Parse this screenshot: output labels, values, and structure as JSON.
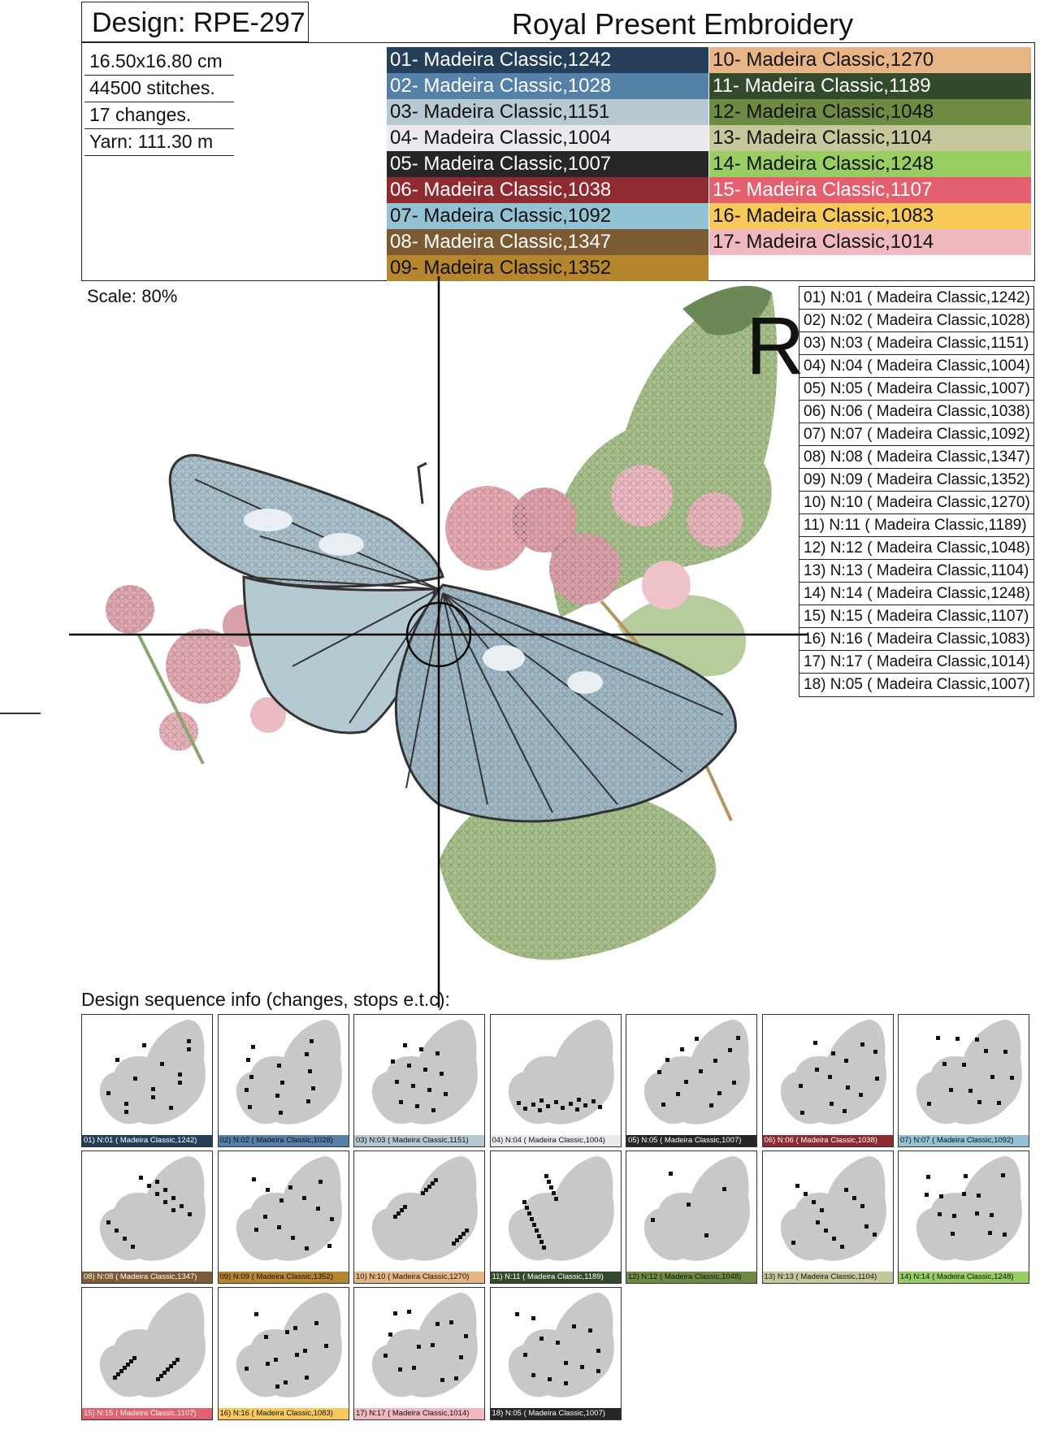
{
  "header": {
    "design_title": "Design: RPE-297",
    "brand": "Royal Present Embroidery"
  },
  "info": [
    "16.50x16.80 cm",
    "44500 stitches.",
    "17 changes.",
    "Yarn: 111.30 m"
  ],
  "scale": "Scale: 80%",
  "registration_mark": "R",
  "colors": [
    {
      "label": "01- Madeira Classic,1242",
      "hex": "#253f5b",
      "text": "#ffffff"
    },
    {
      "label": "02- Madeira Classic,1028",
      "hex": "#5580a8",
      "text": "#ffffff"
    },
    {
      "label": "03- Madeira Classic,1151",
      "hex": "#b8c8d2",
      "text": "#111111"
    },
    {
      "label": "04- Madeira Classic,1004",
      "hex": "#ebe8ee",
      "text": "#111111"
    },
    {
      "label": "05- Madeira Classic,1007",
      "hex": "#262626",
      "text": "#ffffff"
    },
    {
      "label": "06- Madeira Classic,1038",
      "hex": "#8f2a30",
      "text": "#ffffff"
    },
    {
      "label": "07- Madeira Classic,1092",
      "hex": "#93c2d4",
      "text": "#111111"
    },
    {
      "label": "08- Madeira Classic,1347",
      "hex": "#7b5a34",
      "text": "#ffffff"
    },
    {
      "label": "09- Madeira Classic,1352",
      "hex": "#b5862e",
      "text": "#111111"
    },
    {
      "label": "10- Madeira Classic,1270",
      "hex": "#e7b585",
      "text": "#111111"
    },
    {
      "label": "11- Madeira Classic,1189",
      "hex": "#344a2c",
      "text": "#ffffff"
    },
    {
      "label": "12- Madeira Classic,1048",
      "hex": "#6f8a43",
      "text": "#111111"
    },
    {
      "label": "13- Madeira Classic,1104",
      "hex": "#c7c79c",
      "text": "#111111"
    },
    {
      "label": "14- Madeira Classic,1248",
      "hex": "#97cd62",
      "text": "#111111"
    },
    {
      "label": "15- Madeira Classic,1107",
      "hex": "#e4606f",
      "text": "#ffffff"
    },
    {
      "label": "16- Madeira Classic,1083",
      "hex": "#f7c95a",
      "text": "#111111"
    },
    {
      "label": "17- Madeira Classic,1014",
      "hex": "#f0b8bf",
      "text": "#111111"
    }
  ],
  "sequence": [
    {
      "label": "01) N:01 ( Madeira Classic,1242)",
      "hex": "#253f5b",
      "text": "#ffffff"
    },
    {
      "label": "02) N:02 ( Madeira Classic,1028)",
      "hex": "#5580a8",
      "text": "#111111"
    },
    {
      "label": "03) N:03 ( Madeira Classic,1151)",
      "hex": "#b8c8d2",
      "text": "#111111"
    },
    {
      "label": "04) N:04 ( Madeira Classic,1004)",
      "hex": "#ebe8ee",
      "text": "#111111"
    },
    {
      "label": "05) N:05 ( Madeira Classic,1007)",
      "hex": "#262626",
      "text": "#ffffff"
    },
    {
      "label": "06) N:06 ( Madeira Classic,1038)",
      "hex": "#8f2a30",
      "text": "#ffffff"
    },
    {
      "label": "07) N:07 ( Madeira Classic,1092)",
      "hex": "#93c2d4",
      "text": "#111111"
    },
    {
      "label": "08) N:08 ( Madeira Classic,1347)",
      "hex": "#7b5a34",
      "text": "#ffffff"
    },
    {
      "label": "09) N:09 ( Madeira Classic,1352)",
      "hex": "#b5862e",
      "text": "#111111"
    },
    {
      "label": "10) N:10 ( Madeira Classic,1270)",
      "hex": "#e7b585",
      "text": "#111111"
    },
    {
      "label": "11) N:11 ( Madeira Classic,1189)",
      "hex": "#344a2c",
      "text": "#ffffff"
    },
    {
      "label": "12) N:12 ( Madeira Classic,1048)",
      "hex": "#6f8a43",
      "text": "#111111"
    },
    {
      "label": "13) N:13 ( Madeira Classic,1104)",
      "hex": "#c7c79c",
      "text": "#111111"
    },
    {
      "label": "14) N:14 ( Madeira Classic,1248)",
      "hex": "#97cd62",
      "text": "#111111"
    },
    {
      "label": "15) N:15 ( Madeira Classic,1107)",
      "hex": "#e4606f",
      "text": "#ffffff"
    },
    {
      "label": "16) N:16 ( Madeira Classic,1083)",
      "hex": "#f7c95a",
      "text": "#111111"
    },
    {
      "label": "17) N:17 ( Madeira Classic,1014)",
      "hex": "#f0b8bf",
      "text": "#111111"
    },
    {
      "label": "18) N:05 ( Madeira Classic,1007)",
      "hex": "#262626",
      "text": "#ffffff"
    }
  ],
  "sequence_title": "Design sequence info (changes, stops e.t.c):"
}
